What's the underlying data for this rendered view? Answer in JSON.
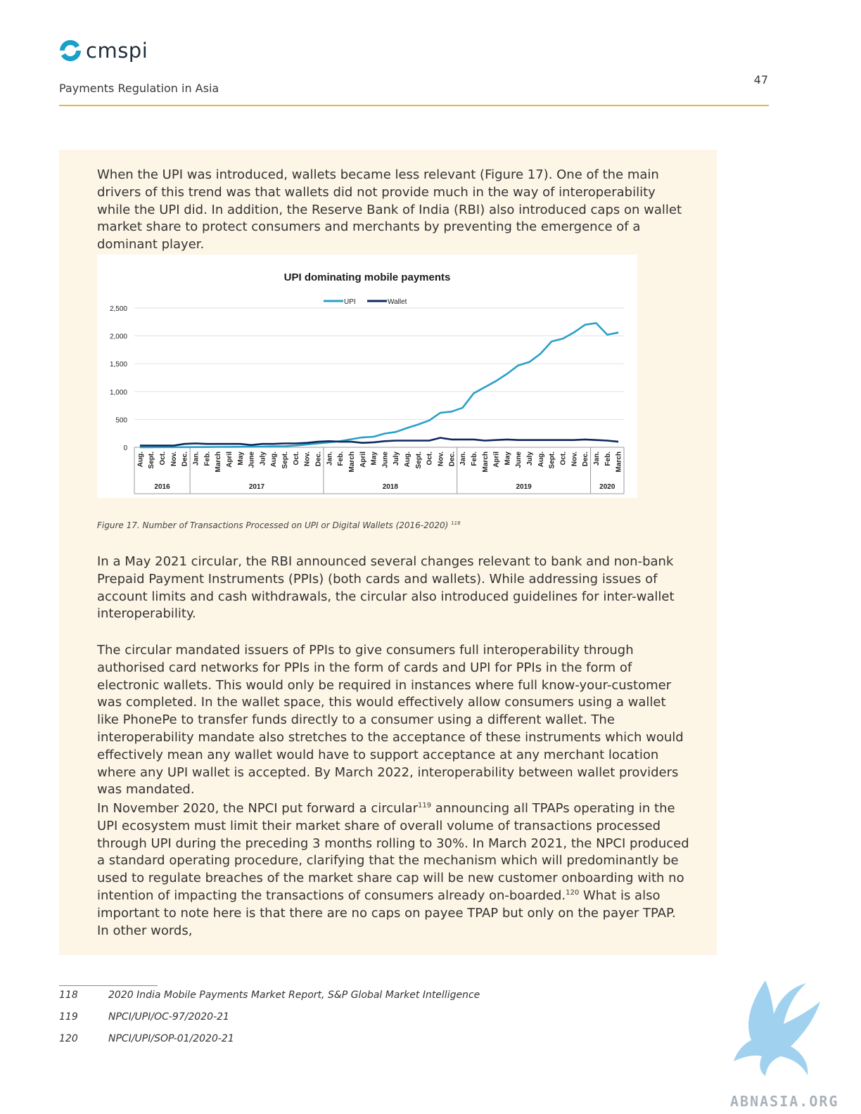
{
  "header": {
    "logo_text": "cmspi",
    "title": "Payments Regulation in Asia",
    "page_number": "47"
  },
  "paragraphs": [
    "When the UPI was introduced, wallets became less relevant (Figure 17). One of the main drivers of this trend was that wallets did not provide much in the way of interoperability while the UPI did. In addition, the Reserve Bank of India (RBI) also introduced caps on wallet market share to protect consumers and merchants by preventing the emergence of a dominant player.",
    "In a May 2021 circular, the RBI announced several changes relevant to bank and non-bank Prepaid Payment Instruments (PPIs) (both cards and wallets). While addressing issues of account limits and cash withdrawals, the circular also introduced guidelines for inter-wallet interoperability.",
    "The circular mandated issuers of PPIs to give consumers full interoperability through authorised card networks for PPIs in the form of cards and UPI for PPIs in the form of electronic wallets. This would only be required in instances where full know-your-customer was completed. In the wallet space, this would effectively allow consumers using a wallet like PhonePe to transfer funds directly to a consumer using a different wallet. The interoperability mandate also stretches to the acceptance of these instruments which would effectively mean any wallet would have to support acceptance at any merchant location where any UPI wallet is accepted. By March 2022, interoperability between wallet providers was mandated."
  ],
  "para4": {
    "a": "In November 2020, the NPCI put forward a circular",
    "sup1": "119",
    "b": " announcing all TPAPs operating in the UPI ecosystem must limit their market share of overall volume of transactions processed through UPI during the preceding 3 months rolling to 30%. In March 2021, the NPCI produced a standard operating procedure, clarifying that the mechanism which will predominantly be used to regulate breaches of the market share cap will be new customer onboarding with no intention of impacting the transactions of consumers already on-boarded.",
    "sup2": "120",
    "c": "  What is also important to note here is that there are no caps on payee TPAP but only on the payer TPAP. In other words,"
  },
  "caption": {
    "text": "Figure 17. Number of Transactions Processed on UPI or Digital Wallets (2016-2020) ",
    "sup": "118"
  },
  "footnotes": [
    {
      "num": "118",
      "text": "2020 India Mobile Payments Market Report, S&P Global Market Intelligence"
    },
    {
      "num": "119",
      "text": "NPCI/UPI/OC-97/2020-21"
    },
    {
      "num": "120",
      "text": "NPCI/UPI/SOP-01/2020-21"
    }
  ],
  "watermark_text": "ABNASIA.ORG",
  "chart_data": {
    "type": "line",
    "title": "UPI dominating mobile payments",
    "xlabel": "",
    "ylabel": "",
    "ylim": [
      0,
      2500
    ],
    "yticks": [
      0,
      500,
      1000,
      1500,
      2000,
      2500
    ],
    "ytick_labels": [
      "0",
      "500",
      "1,000",
      "1,500",
      "2,000",
      "2,500"
    ],
    "legend_position": "top-center",
    "grid": true,
    "categories": [
      "Aug.",
      "Sept.",
      "Oct.",
      "Nov.",
      "Dec.",
      "Jan.",
      "Feb.",
      "March",
      "April",
      "May",
      "June",
      "July",
      "Aug.",
      "Sept.",
      "Oct.",
      "Nov.",
      "Dec.",
      "Jan.",
      "Feb.",
      "March",
      "April",
      "May",
      "June",
      "July",
      "Aug.",
      "Sept.",
      "Oct.",
      "Nov.",
      "Dec.",
      "Jan.",
      "Feb.",
      "March",
      "April",
      "May",
      "June",
      "July",
      "Aug.",
      "Sept.",
      "Oct.",
      "Nov.",
      "Dec.",
      "Jan.",
      "Feb.",
      "March"
    ],
    "year_groups": [
      {
        "label": "2016",
        "start": 0,
        "count": 5
      },
      {
        "label": "2017",
        "start": 5,
        "count": 12
      },
      {
        "label": "2018",
        "start": 17,
        "count": 12
      },
      {
        "label": "2019",
        "start": 29,
        "count": 12
      },
      {
        "label": "2020",
        "start": 41,
        "count": 3
      }
    ],
    "series": [
      {
        "name": "UPI",
        "color": "#2a9fc9",
        "values": [
          0,
          1,
          2,
          2,
          2,
          4,
          4,
          6,
          7,
          9,
          10,
          12,
          16,
          20,
          31,
          50,
          70,
          90,
          110,
          145,
          178,
          190,
          246,
          275,
          346,
          409,
          482,
          620,
          640,
          710,
          970,
          1080,
          1190,
          1320,
          1470,
          1530,
          1680,
          1900,
          1950,
          2060,
          2200,
          2230,
          2020,
          2060
        ]
      },
      {
        "name": "Wallet",
        "color": "#0f2a5c",
        "values": [
          30,
          30,
          30,
          30,
          60,
          70,
          60,
          60,
          60,
          60,
          40,
          60,
          60,
          70,
          70,
          80,
          100,
          110,
          100,
          100,
          80,
          90,
          110,
          120,
          120,
          120,
          120,
          170,
          140,
          140,
          140,
          120,
          130,
          140,
          130,
          130,
          130,
          130,
          130,
          130,
          140,
          130,
          120,
          100
        ]
      }
    ]
  }
}
